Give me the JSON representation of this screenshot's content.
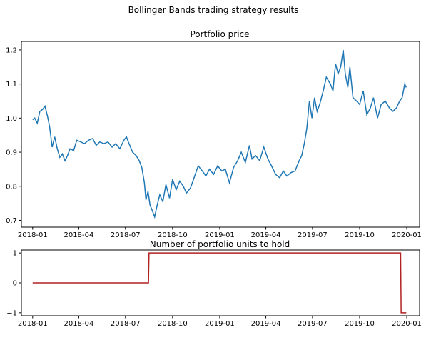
{
  "figure": {
    "suptitle": "Bollinger Bands trading strategy results"
  },
  "colors": {
    "price_line": "#1f77b4",
    "position_line": "#b22222",
    "axes": "#000000"
  },
  "chart_data": [
    {
      "type": "line",
      "title": "Portfolio price",
      "xlabel": "",
      "ylabel": "",
      "x_range": [
        "2017-12-10",
        "2020-01-26"
      ],
      "ylim": [
        0.68,
        1.225
      ],
      "x_ticks": [
        {
          "date": "2018-01-01",
          "label": "2018-01"
        },
        {
          "date": "2018-04-01",
          "label": "2018-04"
        },
        {
          "date": "2018-07-01",
          "label": "2018-07"
        },
        {
          "date": "2018-10-01",
          "label": "2018-10"
        },
        {
          "date": "2019-01-01",
          "label": "2019-01"
        },
        {
          "date": "2019-04-01",
          "label": "2019-04"
        },
        {
          "date": "2019-07-01",
          "label": "2019-07"
        },
        {
          "date": "2019-10-01",
          "label": "2019-10"
        },
        {
          "date": "2020-01-01",
          "label": "2020-01"
        }
      ],
      "y_ticks": [
        {
          "v": 0.7,
          "label": "0.7"
        },
        {
          "v": 0.8,
          "label": "0.8"
        },
        {
          "v": 0.9,
          "label": "0.9"
        },
        {
          "v": 1.0,
          "label": "1.0"
        },
        {
          "v": 1.1,
          "label": "1.1"
        },
        {
          "v": 1.2,
          "label": "1.2"
        }
      ],
      "grid": false,
      "series": [
        {
          "x": [
            "2018-01-01",
            "2018-01-05",
            "2018-01-10",
            "2018-01-15",
            "2018-01-20",
            "2018-01-25",
            "2018-01-30",
            "2018-02-03",
            "2018-02-08",
            "2018-02-13",
            "2018-02-18",
            "2018-02-23",
            "2018-02-28",
            "2018-03-05",
            "2018-03-10",
            "2018-03-15",
            "2018-03-22",
            "2018-03-28",
            "2018-04-05",
            "2018-04-12",
            "2018-04-20",
            "2018-04-28",
            "2018-05-05",
            "2018-05-12",
            "2018-05-20",
            "2018-05-28",
            "2018-06-05",
            "2018-06-12",
            "2018-06-20",
            "2018-06-28",
            "2018-07-03",
            "2018-07-08",
            "2018-07-15",
            "2018-07-22",
            "2018-07-28",
            "2018-08-02",
            "2018-08-07",
            "2018-08-10",
            "2018-08-14",
            "2018-08-18",
            "2018-08-22",
            "2018-08-27",
            "2018-09-01",
            "2018-09-06",
            "2018-09-12",
            "2018-09-18",
            "2018-09-25",
            "2018-10-01",
            "2018-10-08",
            "2018-10-15",
            "2018-10-22",
            "2018-10-28",
            "2018-11-05",
            "2018-11-12",
            "2018-11-20",
            "2018-11-28",
            "2018-12-05",
            "2018-12-12",
            "2018-12-20",
            "2018-12-28",
            "2019-01-05",
            "2019-01-12",
            "2019-01-20",
            "2019-01-28",
            "2019-02-05",
            "2019-02-12",
            "2019-02-20",
            "2019-02-28",
            "2019-03-05",
            "2019-03-12",
            "2019-03-20",
            "2019-03-28",
            "2019-04-05",
            "2019-04-12",
            "2019-04-20",
            "2019-04-28",
            "2019-05-05",
            "2019-05-12",
            "2019-05-20",
            "2019-05-28",
            "2019-06-05",
            "2019-06-10",
            "2019-06-15",
            "2019-06-20",
            "2019-06-25",
            "2019-06-30",
            "2019-07-05",
            "2019-07-10",
            "2019-07-15",
            "2019-07-22",
            "2019-07-28",
            "2019-08-05",
            "2019-08-10",
            "2019-08-15",
            "2019-08-20",
            "2019-08-25",
            "2019-08-30",
            "2019-09-03",
            "2019-09-08",
            "2019-09-12",
            "2019-09-18",
            "2019-09-25",
            "2019-10-01",
            "2019-10-08",
            "2019-10-15",
            "2019-10-22",
            "2019-10-28",
            "2019-11-05",
            "2019-11-12",
            "2019-11-20",
            "2019-11-28",
            "2019-12-05",
            "2019-12-12",
            "2019-12-18",
            "2019-12-23",
            "2019-12-28",
            "2019-12-31"
          ],
          "values": [
            0.995,
            1.0,
            0.985,
            1.02,
            1.025,
            1.035,
            1.005,
            0.975,
            0.915,
            0.945,
            0.91,
            0.885,
            0.895,
            0.875,
            0.89,
            0.91,
            0.905,
            0.935,
            0.93,
            0.925,
            0.935,
            0.94,
            0.92,
            0.93,
            0.925,
            0.93,
            0.915,
            0.925,
            0.91,
            0.935,
            0.945,
            0.925,
            0.9,
            0.89,
            0.875,
            0.855,
            0.81,
            0.76,
            0.785,
            0.745,
            0.73,
            0.71,
            0.745,
            0.775,
            0.755,
            0.805,
            0.765,
            0.82,
            0.79,
            0.815,
            0.8,
            0.78,
            0.795,
            0.825,
            0.86,
            0.845,
            0.83,
            0.85,
            0.835,
            0.86,
            0.845,
            0.85,
            0.81,
            0.855,
            0.875,
            0.9,
            0.87,
            0.92,
            0.88,
            0.89,
            0.875,
            0.915,
            0.88,
            0.86,
            0.835,
            0.825,
            0.845,
            0.83,
            0.84,
            0.845,
            0.875,
            0.89,
            0.925,
            0.97,
            1.05,
            1.0,
            1.06,
            1.02,
            1.04,
            1.08,
            1.12,
            1.1,
            1.08,
            1.16,
            1.13,
            1.15,
            1.2,
            1.13,
            1.09,
            1.15,
            1.06,
            1.05,
            1.04,
            1.08,
            1.01,
            1.03,
            1.06,
            1.0,
            1.04,
            1.05,
            1.03,
            1.02,
            1.03,
            1.05,
            1.06,
            1.1,
            1.09
          ]
        }
      ]
    },
    {
      "type": "line",
      "title": "Number of portfolio units to hold",
      "xlabel": "",
      "ylabel": "",
      "x_range": [
        "2017-12-10",
        "2020-01-26"
      ],
      "ylim": [
        -1.1,
        1.1
      ],
      "x_ticks": [
        {
          "date": "2018-01-01",
          "label": "2018-01"
        },
        {
          "date": "2018-04-01",
          "label": "2018-04"
        },
        {
          "date": "2018-07-01",
          "label": "2018-07"
        },
        {
          "date": "2018-10-01",
          "label": "2018-10"
        },
        {
          "date": "2019-01-01",
          "label": "2019-01"
        },
        {
          "date": "2019-04-01",
          "label": "2019-04"
        },
        {
          "date": "2019-07-01",
          "label": "2019-07"
        },
        {
          "date": "2019-10-01",
          "label": "2019-10"
        },
        {
          "date": "2020-01-01",
          "label": "2020-01"
        }
      ],
      "y_ticks": [
        {
          "v": -1,
          "label": "−1"
        },
        {
          "v": 0,
          "label": "0"
        },
        {
          "v": 1,
          "label": "1"
        }
      ],
      "grid": false,
      "series": [
        {
          "x": [
            "2018-01-01",
            "2018-08-15",
            "2018-08-16",
            "2019-12-20",
            "2019-12-21",
            "2019-12-31"
          ],
          "values": [
            0,
            0,
            1,
            1,
            -1,
            -1
          ]
        }
      ]
    }
  ]
}
